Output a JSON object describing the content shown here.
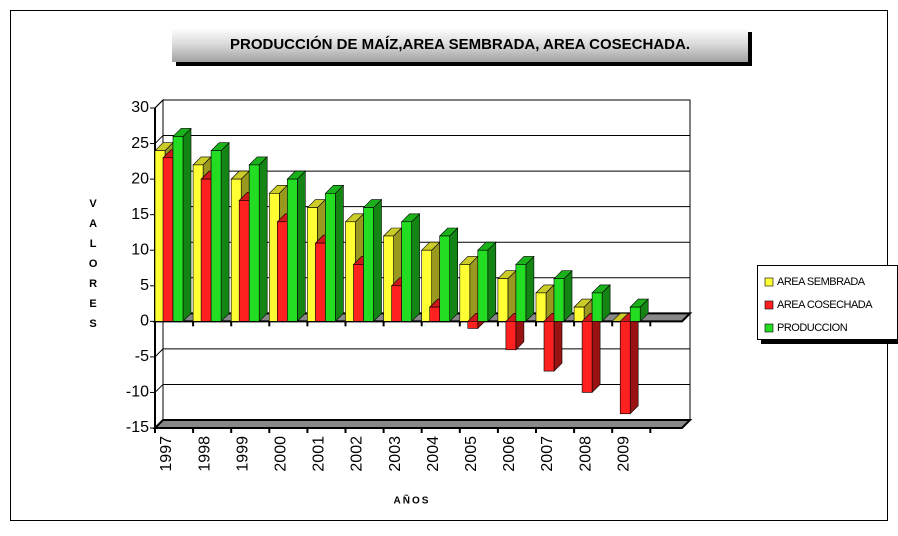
{
  "chart_data": {
    "type": "bar3d",
    "title": "PRODUCCIÓN DE MAÍZ,AREA SEMBRADA, AREA COSECHADA.",
    "y_label": "VALORES",
    "x_label": "AÑOS",
    "categories": [
      "1997",
      "1998",
      "1999",
      "2000",
      "2001",
      "2002",
      "2003",
      "2004",
      "2005",
      "2006",
      "2007",
      "2008",
      "2009"
    ],
    "series": [
      {
        "name": "AREA SEMBRADA",
        "color": "#ffff33",
        "values": [
          24,
          22,
          20,
          18,
          16,
          14,
          12,
          10,
          8,
          6,
          4,
          2,
          0
        ]
      },
      {
        "name": "AREA COSECHADA",
        "color": "#ff2020",
        "values": [
          23,
          20,
          17,
          14,
          11,
          8,
          5,
          2,
          -1,
          -4,
          -7,
          -10,
          -13
        ]
      },
      {
        "name": "PRODUCCION",
        "color": "#22dd22",
        "values": [
          26,
          24,
          22,
          20,
          18,
          16,
          14,
          12,
          10,
          8,
          6,
          4,
          2
        ]
      }
    ],
    "ylim": [
      -15,
      30
    ],
    "yticks": [
      -15,
      -10,
      -5,
      0,
      5,
      10,
      15,
      20,
      25,
      30
    ],
    "grid": true,
    "legend": "right"
  }
}
